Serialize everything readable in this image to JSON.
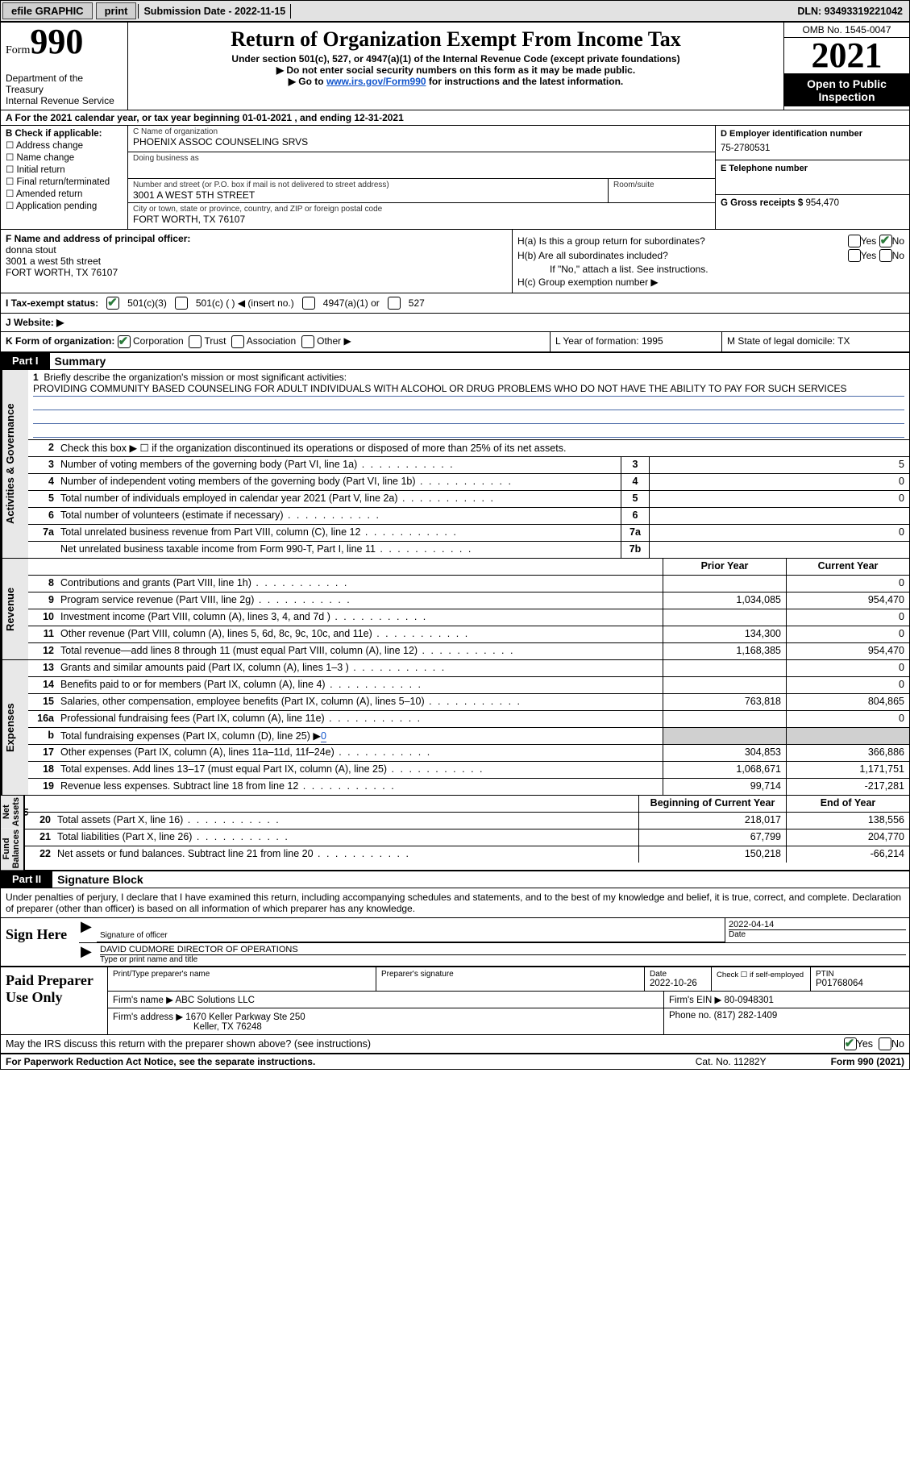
{
  "topbar": {
    "efile": "efile GRAPHIC",
    "print": "print",
    "submission": "Submission Date - 2022-11-15",
    "dln": "DLN: 93493319221042"
  },
  "header": {
    "form_word": "Form",
    "form_num": "990",
    "dept": "Department of the Treasury",
    "irs": "Internal Revenue Service",
    "title": "Return of Organization Exempt From Income Tax",
    "sub1": "Under section 501(c), 527, or 4947(a)(1) of the Internal Revenue Code (except private foundations)",
    "sub2": "▶ Do not enter social security numbers on this form as it may be made public.",
    "sub3_pre": "▶ Go to ",
    "sub3_link": "www.irs.gov/Form990",
    "sub3_post": " for instructions and the latest information.",
    "omb": "OMB No. 1545-0047",
    "year": "2021",
    "inspect": "Open to Public Inspection"
  },
  "lineA": "A For the 2021 calendar year, or tax year beginning 01-01-2021   , and ending 12-31-2021",
  "colB": {
    "title": "B Check if applicable:",
    "addr": "Address change",
    "name": "Name change",
    "init": "Initial return",
    "final": "Final return/terminated",
    "amend": "Amended return",
    "app": "Application pending"
  },
  "colC": {
    "name_lab": "C Name of organization",
    "name": "PHOENIX ASSOC COUNSELING SRVS",
    "dba_lab": "Doing business as",
    "dba": "",
    "street_lab": "Number and street (or P.O. box if mail is not delivered to street address)",
    "street": "3001 A WEST 5TH STREET",
    "suite_lab": "Room/suite",
    "city_lab": "City or town, state or province, country, and ZIP or foreign postal code",
    "city": "FORT WORTH, TX  76107"
  },
  "colDE": {
    "d_lab": "D Employer identification number",
    "d_val": "75-2780531",
    "e_lab": "E Telephone number",
    "e_val": "",
    "g_lab": "G Gross receipts $",
    "g_val": "954,470"
  },
  "blockF": {
    "lab": "F Name and address of principal officer:",
    "name": "donna stout",
    "addr1": "3001 a west 5th street",
    "addr2": "FORT WORTH, TX  76107"
  },
  "blockH": {
    "ha": "H(a)  Is this a group return for subordinates?",
    "hb": "H(b)  Are all subordinates included?",
    "hb_note": "If \"No,\" attach a list. See instructions.",
    "hc": "H(c)  Group exemption number ▶",
    "yes": "Yes",
    "no": "No"
  },
  "rowI": {
    "lab": "I   Tax-exempt status:",
    "o1": "501(c)(3)",
    "o2": "501(c) (  ) ◀ (insert no.)",
    "o3": "4947(a)(1) or",
    "o4": "527"
  },
  "rowJ": "J   Website: ▶",
  "rowK": {
    "lab": "K Form of organization:",
    "corp": "Corporation",
    "trust": "Trust",
    "assoc": "Association",
    "other": "Other ▶"
  },
  "rowL": "L Year of formation: 1995",
  "rowM": "M State of legal domicile: TX",
  "part1": {
    "hdr": "Part I",
    "title": "Summary",
    "l1": "Briefly describe the organization's mission or most significant activities:",
    "mission": "PROVIDING COMMUNITY BASED COUNSELING FOR ADULT INDIVIDUALS WITH ALCOHOL OR DRUG PROBLEMS WHO DO NOT HAVE THE ABILITY TO PAY FOR SUCH SERVICES",
    "l2": "Check this box ▶ ☐  if the organization discontinued its operations or disposed of more than 25% of its net assets.",
    "side_ag": "Activities & Governance",
    "side_rev": "Revenue",
    "side_exp": "Expenses",
    "side_na1": "Net Assets or",
    "side_na2": "Fund Balances",
    "rows_ag": [
      {
        "n": "3",
        "d": "Number of voting members of the governing body (Part VI, line 1a)",
        "box": "3",
        "v": "5"
      },
      {
        "n": "4",
        "d": "Number of independent voting members of the governing body (Part VI, line 1b)",
        "box": "4",
        "v": "0"
      },
      {
        "n": "5",
        "d": "Total number of individuals employed in calendar year 2021 (Part V, line 2a)",
        "box": "5",
        "v": "0"
      },
      {
        "n": "6",
        "d": "Total number of volunteers (estimate if necessary)",
        "box": "6",
        "v": ""
      },
      {
        "n": "7a",
        "d": "Total unrelated business revenue from Part VIII, column (C), line 12",
        "box": "7a",
        "v": "0"
      },
      {
        "n": "",
        "d": "Net unrelated business taxable income from Form 990-T, Part I, line 11",
        "box": "7b",
        "v": ""
      }
    ],
    "hdr_prior": "Prior Year",
    "hdr_curr": "Current Year",
    "rows_rev": [
      {
        "n": "8",
        "d": "Contributions and grants (Part VIII, line 1h)",
        "p": "",
        "c": "0"
      },
      {
        "n": "9",
        "d": "Program service revenue (Part VIII, line 2g)",
        "p": "1,034,085",
        "c": "954,470"
      },
      {
        "n": "10",
        "d": "Investment income (Part VIII, column (A), lines 3, 4, and 7d )",
        "p": "",
        "c": "0"
      },
      {
        "n": "11",
        "d": "Other revenue (Part VIII, column (A), lines 5, 6d, 8c, 9c, 10c, and 11e)",
        "p": "134,300",
        "c": "0"
      },
      {
        "n": "12",
        "d": "Total revenue—add lines 8 through 11 (must equal Part VIII, column (A), line 12)",
        "p": "1,168,385",
        "c": "954,470"
      }
    ],
    "rows_exp": [
      {
        "n": "13",
        "d": "Grants and similar amounts paid (Part IX, column (A), lines 1–3 )",
        "p": "",
        "c": "0"
      },
      {
        "n": "14",
        "d": "Benefits paid to or for members (Part IX, column (A), line 4)",
        "p": "",
        "c": "0"
      },
      {
        "n": "15",
        "d": "Salaries, other compensation, employee benefits (Part IX, column (A), lines 5–10)",
        "p": "763,818",
        "c": "804,865"
      },
      {
        "n": "16a",
        "d": "Professional fundraising fees (Part IX, column (A), line 11e)",
        "p": "",
        "c": "0"
      },
      {
        "n": "b",
        "d": "Total fundraising expenses (Part IX, column (D), line 25) ▶",
        "p": "shade",
        "c": "shade",
        "fund": "0"
      },
      {
        "n": "17",
        "d": "Other expenses (Part IX, column (A), lines 11a–11d, 11f–24e)",
        "p": "304,853",
        "c": "366,886"
      },
      {
        "n": "18",
        "d": "Total expenses. Add lines 13–17 (must equal Part IX, column (A), line 25)",
        "p": "1,068,671",
        "c": "1,171,751"
      },
      {
        "n": "19",
        "d": "Revenue less expenses. Subtract line 18 from line 12",
        "p": "99,714",
        "c": "-217,281"
      }
    ],
    "hdr_beg": "Beginning of Current Year",
    "hdr_end": "End of Year",
    "rows_na": [
      {
        "n": "20",
        "d": "Total assets (Part X, line 16)",
        "p": "218,017",
        "c": "138,556"
      },
      {
        "n": "21",
        "d": "Total liabilities (Part X, line 26)",
        "p": "67,799",
        "c": "204,770"
      },
      {
        "n": "22",
        "d": "Net assets or fund balances. Subtract line 21 from line 20",
        "p": "150,218",
        "c": "-66,214"
      }
    ]
  },
  "part2": {
    "hdr": "Part II",
    "title": "Signature Block",
    "intro": "Under penalties of perjury, I declare that I have examined this return, including accompanying schedules and statements, and to the best of my knowledge and belief, it is true, correct, and complete. Declaration of preparer (other than officer) is based on all information of which preparer has any knowledge.",
    "sign_here": "Sign Here",
    "sig_officer": "Signature of officer",
    "sig_date": "2022-04-14",
    "date_lab": "Date",
    "name_title": "DAVID CUDMORE  DIRECTOR OF OPERATIONS",
    "name_title_lab": "Type or print name and title",
    "paid": "Paid Preparer Use Only",
    "prep_name_lab": "Print/Type preparer's name",
    "prep_sig_lab": "Preparer's signature",
    "prep_date_lab": "Date",
    "prep_date": "2022-10-26",
    "prep_check": "Check ☐ if self-employed",
    "ptin_lab": "PTIN",
    "ptin": "P01768064",
    "firm_name_lab": "Firm's name    ▶",
    "firm_name": "ABC Solutions LLC",
    "firm_ein_lab": "Firm's EIN ▶",
    "firm_ein": "80-0948301",
    "firm_addr_lab": "Firm's address ▶",
    "firm_addr1": "1670 Keller Parkway Ste 250",
    "firm_addr2": "Keller, TX  76248",
    "phone_lab": "Phone no.",
    "phone": "(817) 282-1409",
    "discuss": "May the IRS discuss this return with the preparer shown above? (see instructions)",
    "yes": "Yes",
    "no": "No"
  },
  "footer": {
    "pra": "For Paperwork Reduction Act Notice, see the separate instructions.",
    "cat": "Cat. No. 11282Y",
    "form": "Form 990 (2021)"
  }
}
